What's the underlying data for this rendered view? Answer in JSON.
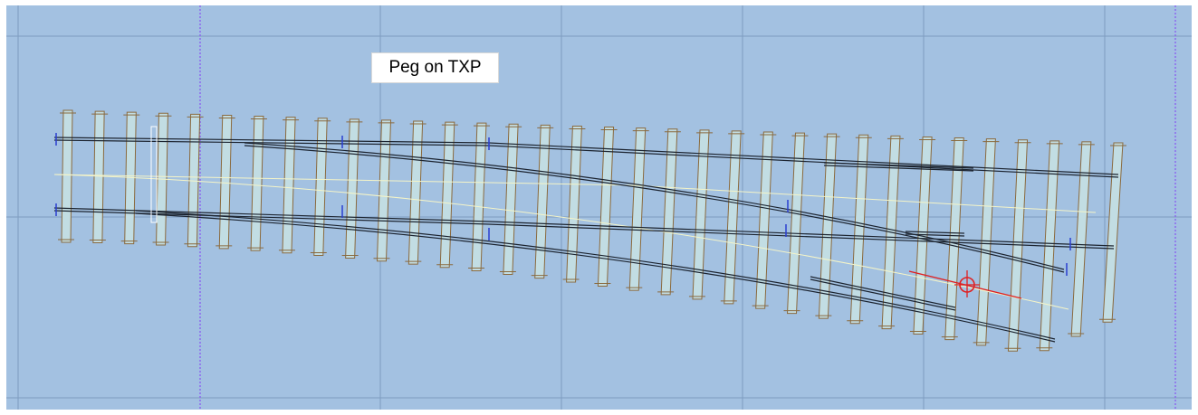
{
  "label": {
    "text": "Peg on TXP"
  },
  "colors": {
    "background": "#a3c1e1",
    "grid_line": "#7e9cc0",
    "dotted_guide": "#8a5cf0",
    "timber_fill": "#c2dde3",
    "timber_edge": "#8a6a3e",
    "rail": "#1c2430",
    "centre_line": "#f4f4c8",
    "peg": "#e02020",
    "tick_mark": "#2a3ed0",
    "outer_frame": "#ffffff"
  },
  "icons": {
    "peg": "crosshair-peg-icon"
  }
}
